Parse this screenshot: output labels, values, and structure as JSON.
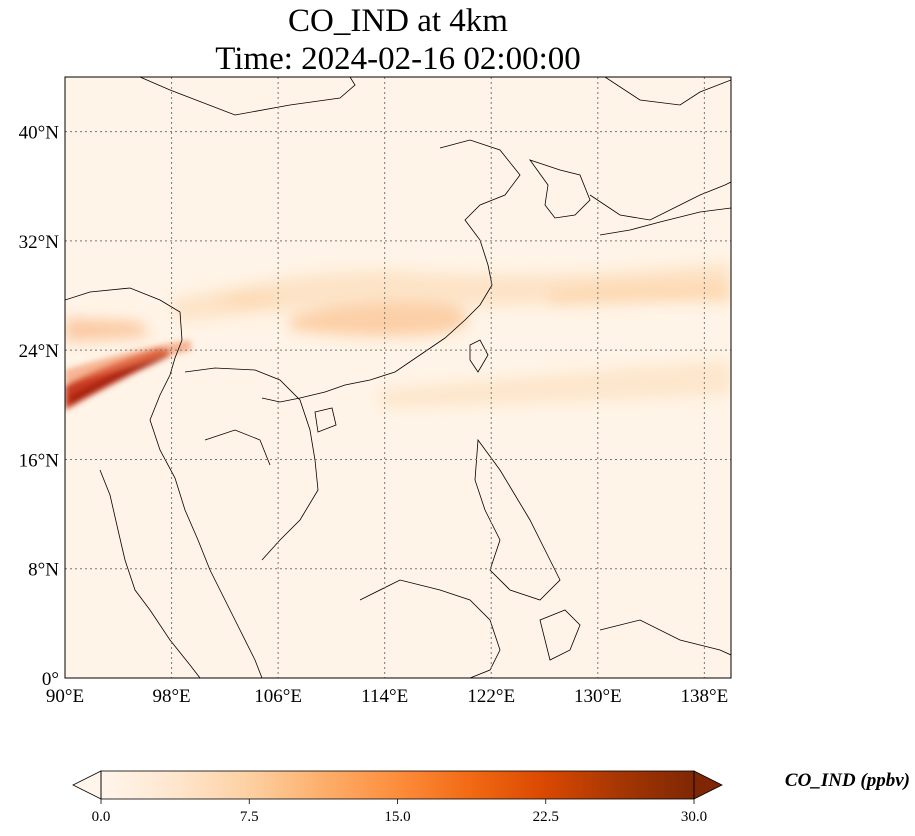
{
  "title": {
    "line1": "CO_IND at 4km",
    "line2": "Time: 2024-02-16 02:00:00"
  },
  "map": {
    "extent": {
      "lon": [
        90,
        140
      ],
      "lat": [
        0,
        44
      ]
    },
    "x_ticks": [
      {
        "value": 90,
        "label": "90°E"
      },
      {
        "value": 98,
        "label": "98°E"
      },
      {
        "value": 106,
        "label": "106°E"
      },
      {
        "value": 114,
        "label": "114°E"
      },
      {
        "value": 122,
        "label": "122°E"
      },
      {
        "value": 130,
        "label": "130°E"
      },
      {
        "value": 138,
        "label": "138°E"
      }
    ],
    "y_ticks": [
      {
        "value": 0,
        "label": "0°"
      },
      {
        "value": 8,
        "label": "8°N"
      },
      {
        "value": 16,
        "label": "16°N"
      },
      {
        "value": 24,
        "label": "24°N"
      },
      {
        "value": 32,
        "label": "32°N"
      },
      {
        "value": 40,
        "label": "40°N"
      }
    ],
    "grid": true
  },
  "colorbar": {
    "label": "CO_IND (ppbv)",
    "min": 0,
    "max": 30,
    "ticks": [
      {
        "value": 0,
        "label": "0.0"
      },
      {
        "value": 7.5,
        "label": "7.5"
      },
      {
        "value": 15,
        "label": "15.0"
      },
      {
        "value": 22.5,
        "label": "22.5"
      },
      {
        "value": 30,
        "label": "30.0"
      }
    ],
    "colors": [
      "#fff5eb",
      "#fee6ce",
      "#fdd0a2",
      "#fdae6b",
      "#fd8d3c",
      "#f16913",
      "#d94801",
      "#a63603",
      "#7f2704"
    ]
  }
}
